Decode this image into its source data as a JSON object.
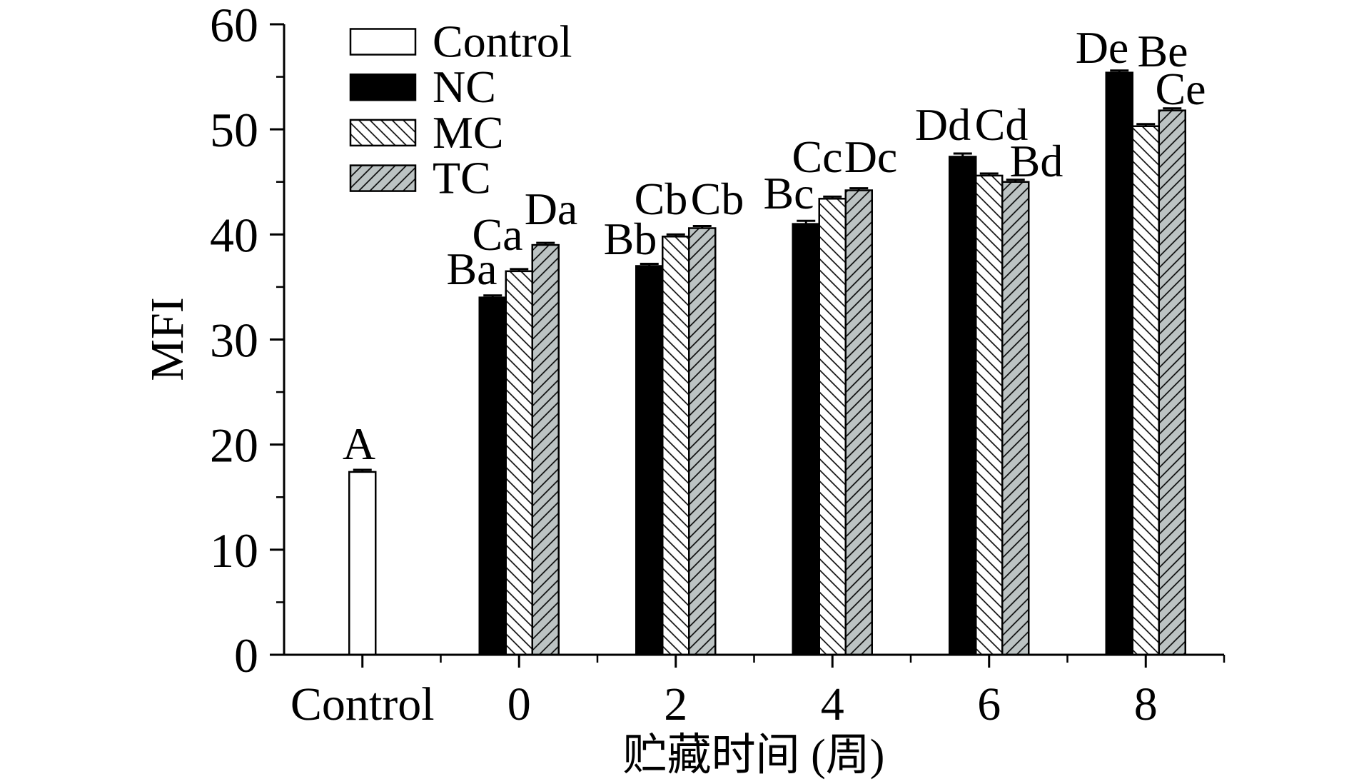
{
  "chart_data": {
    "type": "bar",
    "categories": [
      "Control",
      "0",
      "2",
      "4",
      "6",
      "8"
    ],
    "xlabel": "贮藏时间 (周)",
    "ylabel": "MFI",
    "ylim": [
      0,
      60
    ],
    "yticks": [
      0,
      10,
      20,
      30,
      40,
      50,
      60
    ],
    "grid": false,
    "legend_position": "top-left",
    "series": [
      {
        "name": "Control",
        "fill": "#ffffff",
        "pattern": "none",
        "values": [
          17.4,
          null,
          null,
          null,
          null,
          null
        ],
        "errors": [
          0.2,
          null,
          null,
          null,
          null,
          null
        ],
        "labels": [
          "A",
          null,
          null,
          null,
          null,
          null
        ]
      },
      {
        "name": "NC",
        "fill": "#000000",
        "pattern": "none",
        "values": [
          null,
          34.0,
          37.0,
          41.0,
          47.4,
          55.4
        ],
        "errors": [
          null,
          0.2,
          0.2,
          0.3,
          0.3,
          0.2
        ],
        "labels": [
          null,
          "Ba",
          "Bb",
          "Bc",
          "Dd",
          "De"
        ]
      },
      {
        "name": "MC",
        "fill": "#ffffff",
        "pattern": "hatch-backslash",
        "values": [
          null,
          36.5,
          39.8,
          43.4,
          45.6,
          50.3
        ],
        "errors": [
          null,
          0.2,
          0.2,
          0.2,
          0.2,
          0.2
        ],
        "labels": [
          null,
          "Ca",
          "Cb",
          "Cc",
          "Cd",
          "Be"
        ]
      },
      {
        "name": "TC",
        "fill": "#bcc3c3",
        "pattern": "hatch-slash",
        "values": [
          null,
          39.0,
          40.6,
          44.2,
          45.0,
          51.8
        ],
        "errors": [
          null,
          0.2,
          0.2,
          0.2,
          0.2,
          0.2
        ],
        "labels": [
          null,
          "Da",
          "Cb",
          "Dc",
          "Bd",
          "Ce"
        ]
      }
    ]
  }
}
